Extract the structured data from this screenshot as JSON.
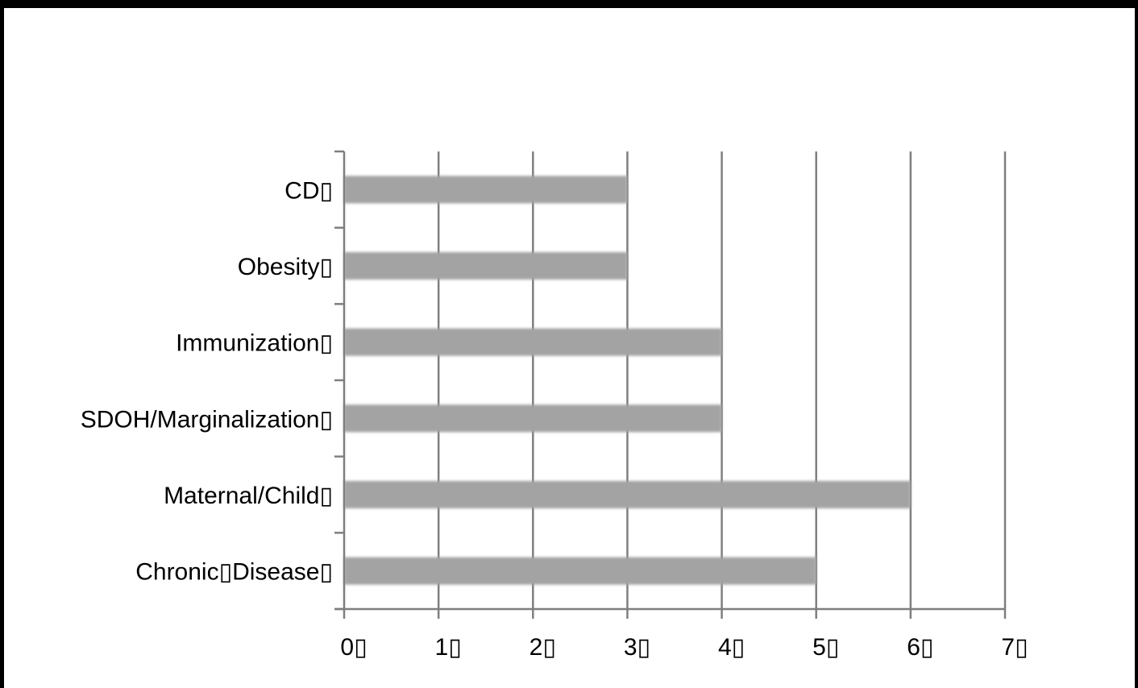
{
  "chart_data": {
    "type": "bar",
    "orientation": "horizontal",
    "categories": [
      "Chronic▯Disease▯",
      "Maternal/Child▯",
      "SDOH/Marginalization▯",
      "Immunization▯",
      "Obesity▯",
      "CD▯"
    ],
    "values": [
      5,
      6,
      4,
      4,
      3,
      3
    ],
    "x_ticks": [
      "0▯",
      "1▯",
      "2▯",
      "3▯",
      "4▯",
      "5▯",
      "6▯",
      "7▯"
    ],
    "xlim": [
      0,
      7
    ],
    "title": "",
    "xlabel": "",
    "ylabel": "",
    "grid": "vertical",
    "legend": "none",
    "colors": {
      "bar": "#a3a3a3",
      "gridline": "#7f7f7f",
      "axis": "#7f7f7f",
      "text": "#000000",
      "frame": "#000000"
    }
  }
}
